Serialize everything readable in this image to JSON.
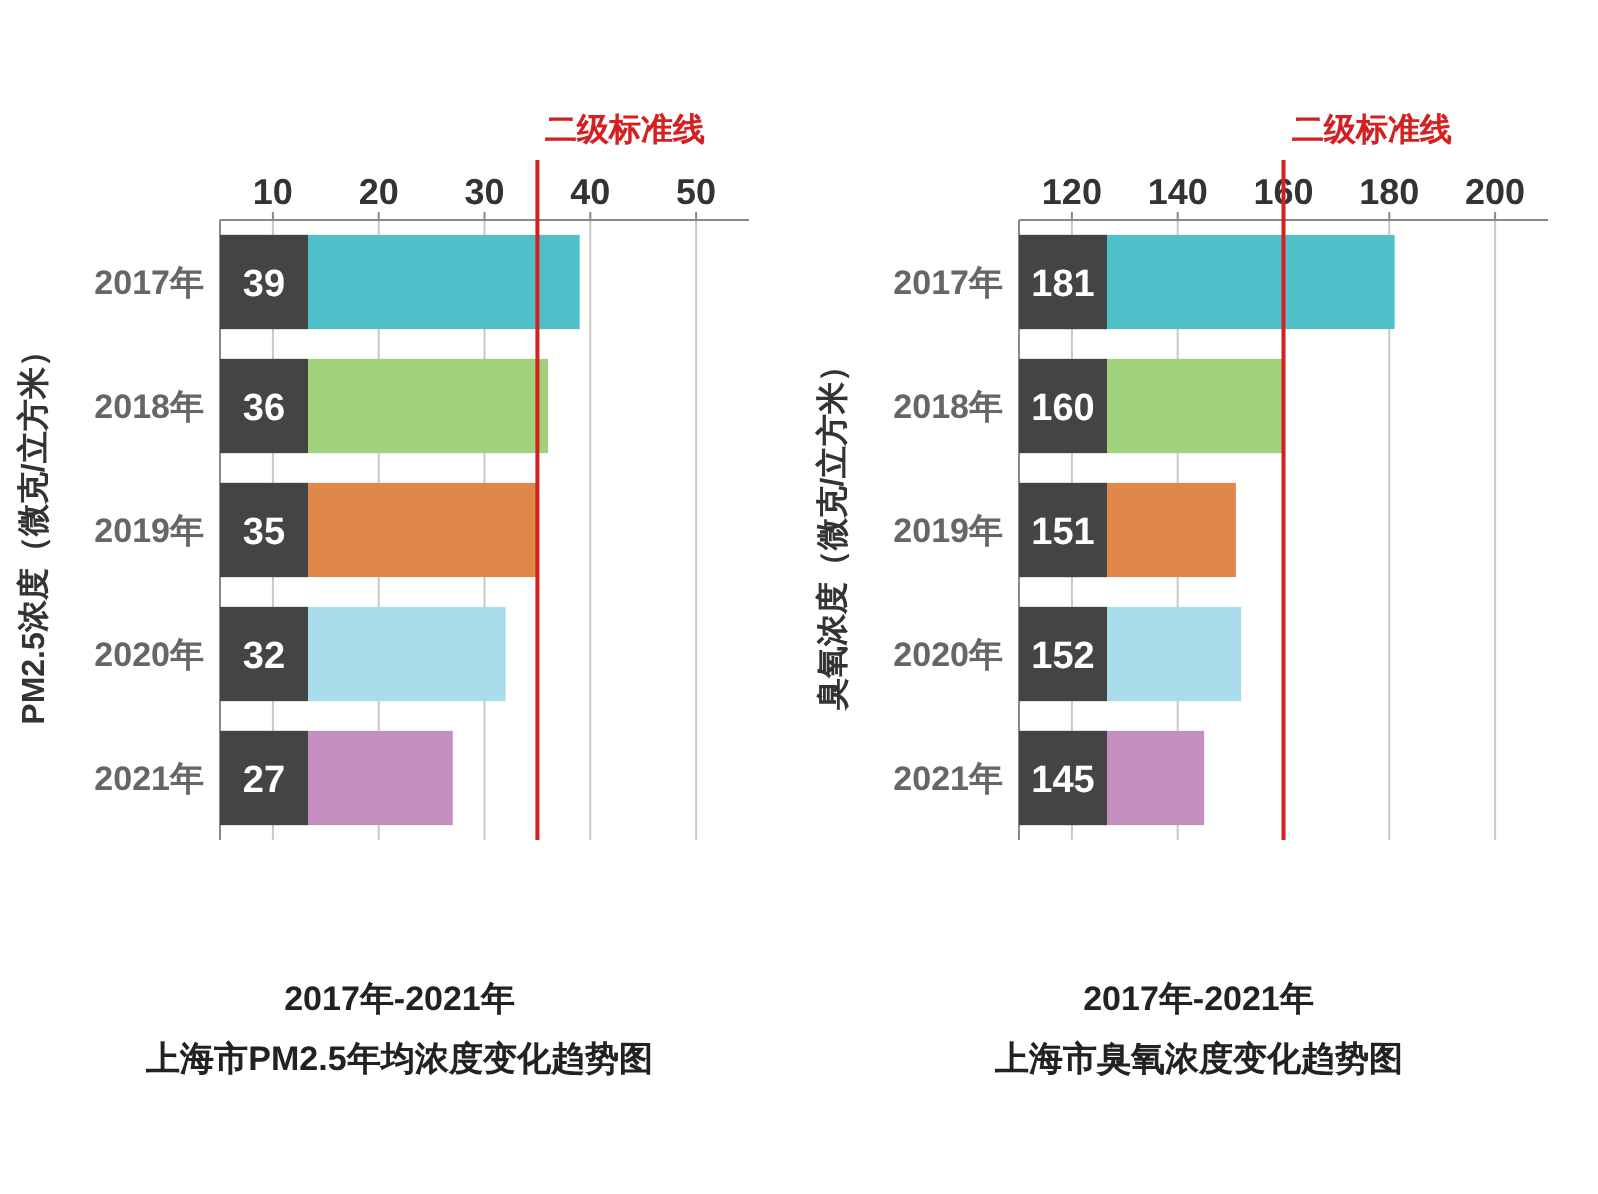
{
  "chart_data": [
    {
      "type": "bar",
      "orientation": "horizontal",
      "title": "2017年-2021年",
      "subtitle": "上海市PM2.5年均浓度变化趋势图",
      "ylabel": "PM2.5浓度（微克/立方米）",
      "categories": [
        "2017年",
        "2018年",
        "2019年",
        "2020年",
        "2021年"
      ],
      "values": [
        39,
        36,
        35,
        32,
        27
      ],
      "colors": [
        "#4fbfc9",
        "#9fd27a",
        "#e0874a",
        "#a9ddec",
        "#c48fbf"
      ],
      "xlim": [
        5,
        55
      ],
      "xticks": [
        10,
        20,
        30,
        40,
        50
      ],
      "grid": "x",
      "data_labels": true,
      "ref_lines": [
        {
          "axis": "x",
          "value": 35,
          "label": "二级标准线",
          "color": "#d42020"
        }
      ]
    },
    {
      "type": "bar",
      "orientation": "horizontal",
      "title": "2017年-2021年",
      "subtitle": "上海市臭氧浓度变化趋势图",
      "ylabel": "臭氧浓度（微克/立方米）",
      "categories": [
        "2017年",
        "2018年",
        "2019年",
        "2020年",
        "2021年"
      ],
      "values": [
        181,
        160,
        151,
        152,
        145
      ],
      "colors": [
        "#4fbfc9",
        "#9fd27a",
        "#e0874a",
        "#a9ddec",
        "#c48fbf"
      ],
      "xlim": [
        110,
        210
      ],
      "xticks": [
        120,
        140,
        160,
        180,
        200
      ],
      "grid": "x",
      "data_labels": true,
      "ref_lines": [
        {
          "axis": "x",
          "value": 160,
          "label": "二级标准线",
          "color": "#d42020"
        }
      ]
    }
  ]
}
